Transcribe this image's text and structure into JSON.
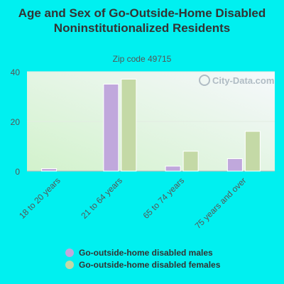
{
  "chart_data": {
    "type": "bar",
    "title": "Age and Sex of Go-Outside-Home Disabled Noninstitutionalized Residents",
    "subtitle": "Zip code 49715",
    "categories": [
      "18 to 20 years",
      "21 to 64 years",
      "65 to 74 years",
      "75 years and over"
    ],
    "series": [
      {
        "name": "Go-outside-home disabled males",
        "color": "#c0a8dc",
        "values": [
          1,
          35,
          2,
          5
        ]
      },
      {
        "name": "Go-outside-home disabled females",
        "color": "#c4d9a6",
        "values": [
          0,
          37,
          8,
          16
        ]
      }
    ],
    "ylim": [
      0,
      40
    ],
    "yticks": [
      0,
      20,
      40
    ],
    "grid": true,
    "legend_position": "bottom",
    "watermark": "City-Data.com"
  }
}
